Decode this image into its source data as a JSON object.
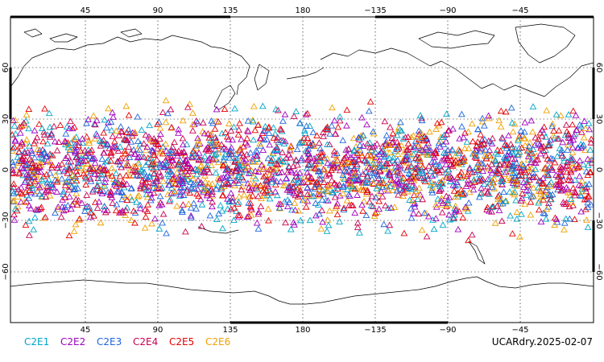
{
  "map": {
    "lon_ticks_top": [
      "45",
      "90",
      "135",
      "180",
      "−135",
      "−90",
      "−45"
    ],
    "lon_ticks_bottom": [
      "45",
      "90",
      "135",
      "180",
      "−135",
      "−90",
      "−45"
    ],
    "lat_ticks": [
      "60",
      "30",
      "0",
      "−30",
      "−60"
    ],
    "projection": "cylindrical equidistant, centered on 180",
    "grid": true,
    "marker_shape": "open-triangle",
    "observation_latitude_range": [
      -45,
      45
    ]
  },
  "legend": [
    {
      "label": "C2E1",
      "color": "#00a5c8"
    },
    {
      "label": "C2E2",
      "color": "#a000c0"
    },
    {
      "label": "C2E3",
      "color": "#1e64dc"
    },
    {
      "label": "C2E4",
      "color": "#c80050"
    },
    {
      "label": "C2E5",
      "color": "#e60000"
    },
    {
      "label": "C2E6",
      "color": "#f0a000"
    }
  ],
  "footer": {
    "dataset_date": "UCARdry.2025-02-07"
  }
}
